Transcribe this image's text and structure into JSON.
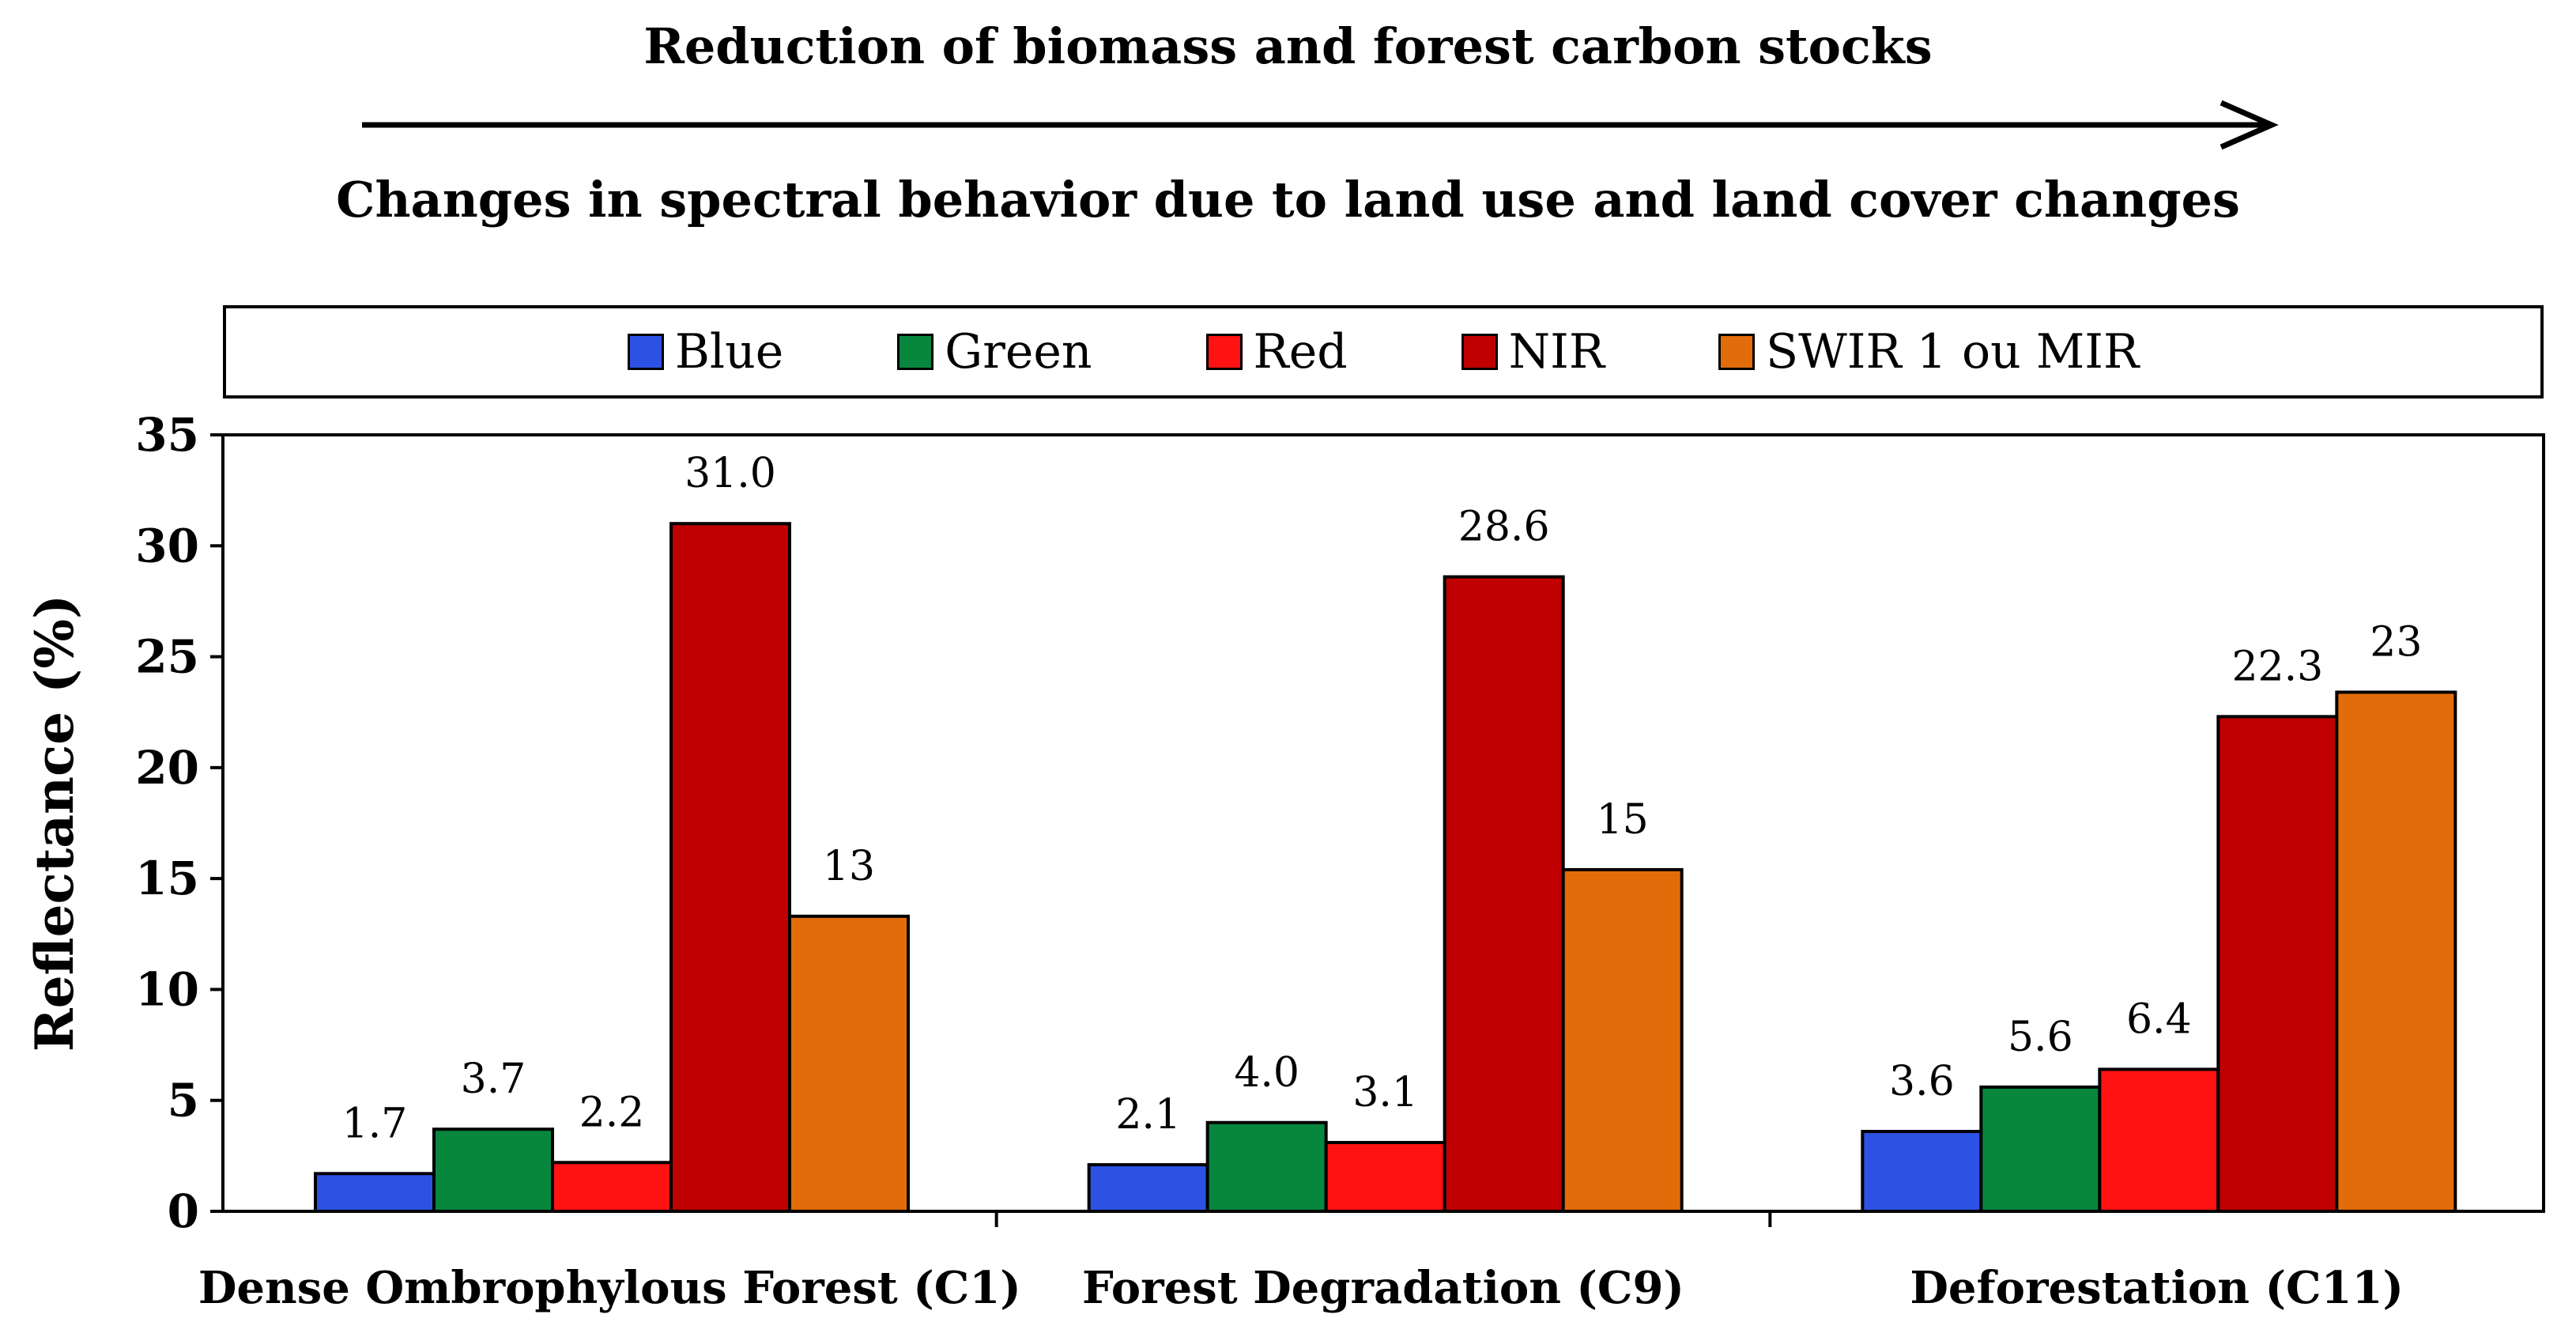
{
  "header": {
    "title": "Reduction of biomass and forest carbon stocks",
    "subtitle": "Changes in spectral behavior due to land use and land cover changes"
  },
  "chart_data": {
    "type": "bar",
    "categories": [
      "Dense Ombrophylous Forest (C1)",
      "Forest Degradation (C9)",
      "Deforestation (C11)"
    ],
    "series": [
      {
        "name": "Blue",
        "color": "#2d52e3",
        "values": [
          1.7,
          2.1,
          3.6
        ],
        "labels": [
          "1.7",
          "2.1",
          "3.6"
        ]
      },
      {
        "name": "Green",
        "color": "#07873e",
        "values": [
          3.7,
          4.0,
          5.6
        ],
        "labels": [
          "3.7",
          "4.0",
          "5.6"
        ]
      },
      {
        "name": "Red",
        "color": "#ff1212",
        "values": [
          2.2,
          3.1,
          6.4
        ],
        "labels": [
          "2.2",
          "3.1",
          "6.4"
        ]
      },
      {
        "name": "NIR",
        "color": "#c00000",
        "values": [
          31.0,
          28.6,
          22.3
        ],
        "labels": [
          "31.0",
          "28.6",
          "22.3"
        ]
      },
      {
        "name": "SWIR 1 ou MIR",
        "color": "#e36c0a",
        "values": [
          13.3,
          15.4,
          23.4
        ],
        "labels": [
          "13",
          "15",
          "23"
        ]
      }
    ],
    "title": "",
    "xlabel": "",
    "ylabel": "Reflectance (%)",
    "ylim": [
      0,
      35
    ],
    "yticks": [
      0,
      5,
      10,
      15,
      20,
      25,
      30,
      35
    ],
    "grid": false,
    "legend": "top"
  }
}
